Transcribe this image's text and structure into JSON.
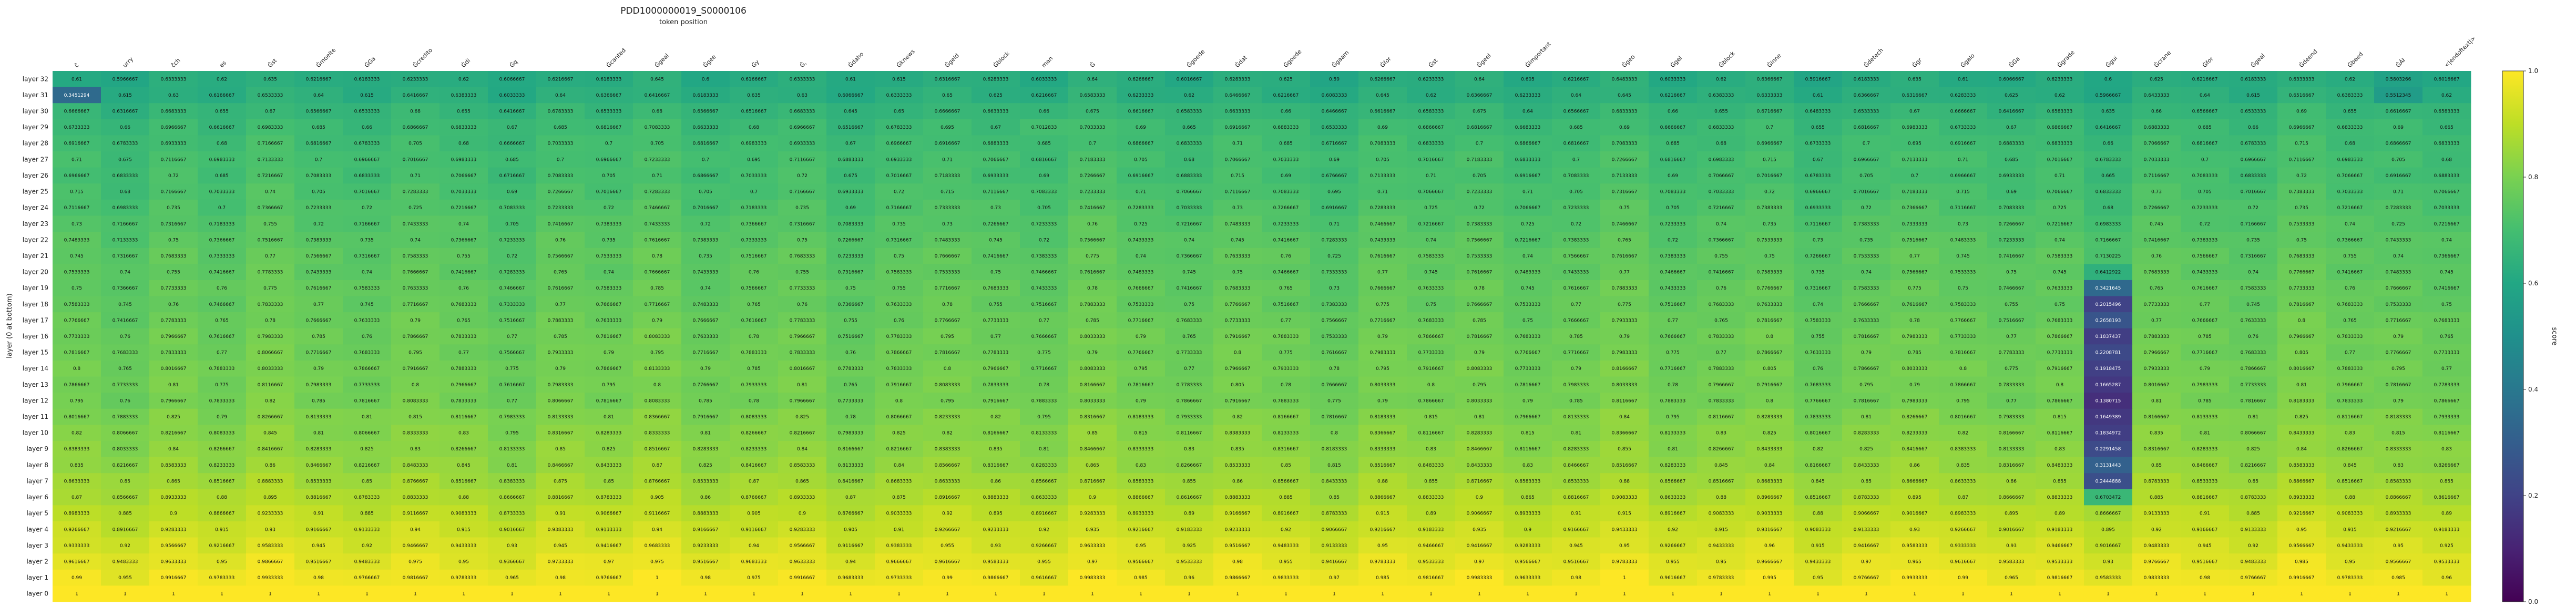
{
  "chart_data": {
    "type": "heatmap",
    "title": "PDD1000000019_S0000106",
    "xlabel": "token position",
    "ylabel": "layer (0 at bottom)",
    "colorbar_label": "score",
    "colormap": "viridis",
    "value_range": [
      0,
      1
    ],
    "colorbar_ticks": [
      "0.0",
      "0.2",
      "0.4",
      "0.6",
      "0.8",
      "1.0"
    ],
    "x_tokens": [
      "ĉ",
      "urry",
      "ĉch",
      "es",
      "Ġst",
      "Ġmoeite",
      "ĠGa",
      "Ġcredito",
      "Ġdi",
      "Ġq",
      "",
      "Ġcanted",
      "Ġgeal",
      "Ġgee",
      "Ġy",
      "Ġ,",
      "Ġdaho",
      "Ġknews",
      "Ġgeld",
      "Ġblock",
      "man",
      "Ġ",
      "",
      "Ġgoede",
      "Ġdat",
      "Ġgoede",
      "Ġgaarn",
      "Ġfor",
      "Ġst",
      "Ġgeel",
      "Ġimportant",
      "",
      "Ġgeo",
      "Ġgel",
      "Ġblock",
      "Ġinne",
      "",
      "Ġdetech",
      "Ġgr",
      "Ġgalo",
      "ĠGa",
      "Ġgrade",
      "Ġgui",
      "Ġcrane",
      "Ġfor",
      "Ġgeal",
      "Ġdeend",
      "Ġbeed",
      "ĠÂł",
      "<|endoftext|>"
    ],
    "y_layers": [
      "layer 32",
      "layer 31",
      "layer 30",
      "layer 29",
      "layer 28",
      "layer 27",
      "layer 26",
      "layer 25",
      "layer 24",
      "layer 23",
      "layer 22",
      "layer 21",
      "layer 20",
      "layer 19",
      "layer 18",
      "layer 17",
      "layer 16",
      "layer 15",
      "layer 14",
      "layer 13",
      "layer 12",
      "layer 11",
      "layer 10",
      "layer 9",
      "layer 8",
      "layer 7",
      "layer 6",
      "layer 5",
      "layer 4",
      "layer 3",
      "layer 2",
      "layer 1",
      "layer 0"
    ],
    "base_values": [
      0.62,
      0.63,
      0.66,
      0.68,
      0.69,
      0.7,
      0.7,
      0.71,
      0.72,
      0.73,
      0.74,
      0.75,
      0.75,
      0.76,
      0.76,
      0.77,
      0.78,
      0.78,
      0.79,
      0.79,
      0.79,
      0.81,
      0.82,
      0.83,
      0.84,
      0.86,
      0.88,
      0.9,
      0.92,
      0.94,
      0.96,
      0.98,
      1.0
    ],
    "token_offsets": [
      0.0,
      -0.02,
      0.01,
      -0.01,
      0.02,
      0.0,
      -0.01,
      0.01,
      0.0,
      -0.02,
      0.01,
      0.0,
      0.02,
      -0.01,
      0.0,
      0.01,
      -0.02,
      0.0,
      0.01,
      0.0,
      -0.01,
      0.02,
      0.0,
      -0.01,
      0.01,
      0.0,
      -0.02,
      0.01,
      0.0,
      0.01,
      -0.01,
      0.0,
      0.02,
      -0.01,
      0.0,
      0.01,
      -0.02,
      0.0,
      0.01,
      0.0,
      -0.01,
      0.0,
      -0.03,
      0.01,
      0.0,
      -0.01,
      0.02,
      0.0,
      0.0,
      -0.01
    ],
    "special_cells": [
      {
        "layer": "layer 31",
        "token_index": 0,
        "value": 0.3451294
      },
      {
        "layer": "layer 31",
        "token_index": 48,
        "value": 0.5512345
      },
      {
        "layer": "layer 32",
        "token_index": 48,
        "value": 0.5803266
      },
      {
        "layer": "layer 29",
        "token_index": 20,
        "value": 0.7012833
      },
      {
        "layer": "layer 19",
        "token_index": 42,
        "value": 0.3421645
      },
      {
        "layer": "layer 18",
        "token_index": 42,
        "value": 0.2015496
      },
      {
        "layer": "layer 17",
        "token_index": 42,
        "value": 0.2658193
      },
      {
        "layer": "layer 16",
        "token_index": 42,
        "value": 0.1837437
      },
      {
        "layer": "layer 15",
        "token_index": 42,
        "value": 0.2208781
      },
      {
        "layer": "layer 14",
        "token_index": 42,
        "value": 0.1918475
      },
      {
        "layer": "layer 13",
        "token_index": 42,
        "value": 0.1665287
      },
      {
        "layer": "layer 12",
        "token_index": 42,
        "value": 0.1380715
      },
      {
        "layer": "layer 11",
        "token_index": 42,
        "value": 0.1649389
      },
      {
        "layer": "layer 10",
        "token_index": 42,
        "value": 0.1834972
      },
      {
        "layer": "layer 9",
        "token_index": 42,
        "value": 0.2291458
      },
      {
        "layer": "layer 8",
        "token_index": 42,
        "value": 0.3131443
      },
      {
        "layer": "layer 7",
        "token_index": 42,
        "value": 0.2444888
      },
      {
        "layer": "layer 6",
        "token_index": 42,
        "value": 0.6703472
      },
      {
        "layer": "layer 20",
        "token_index": 42,
        "value": 0.6412922
      },
      {
        "layer": "layer 21",
        "token_index": 42,
        "value": 0.7130225
      }
    ]
  }
}
